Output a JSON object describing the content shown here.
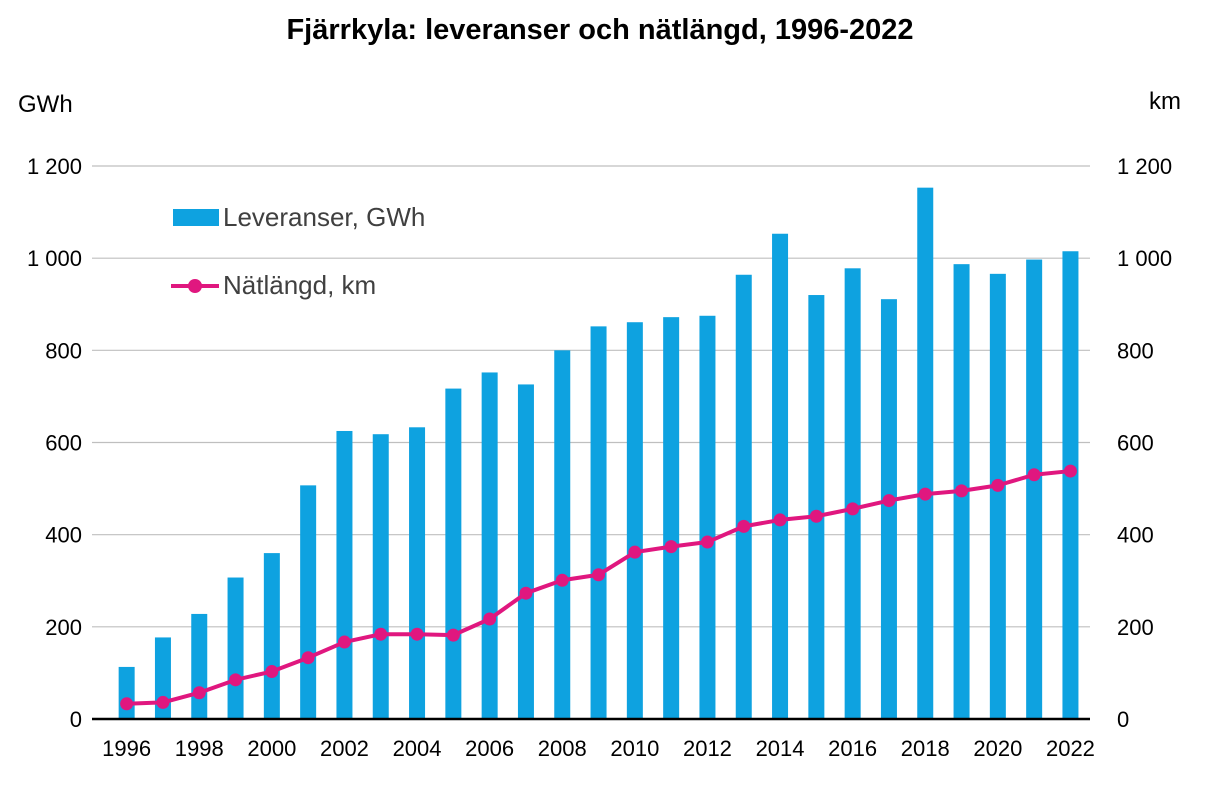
{
  "chart_data": {
    "type": "bar+line",
    "title": "Fjärrkyla: leveranser och nätlängd, 1996-2022",
    "y_left_unit": "GWh",
    "y_right_unit": "km",
    "ylim_left": [
      0,
      1200
    ],
    "ylim_right": [
      0,
      1200
    ],
    "y_ticks_left": [
      "0",
      "200",
      "400",
      "600",
      "800",
      "1 000",
      "1 200"
    ],
    "y_ticks_right": [
      "0",
      "200",
      "400",
      "600",
      "800",
      "1 000",
      "1 200"
    ],
    "y_tick_values": [
      0,
      200,
      400,
      600,
      800,
      1000,
      1200
    ],
    "x_tick_labels": [
      "1996",
      "1998",
      "2000",
      "2002",
      "2004",
      "2006",
      "2008",
      "2010",
      "2012",
      "2014",
      "2016",
      "2018",
      "2020",
      "2022"
    ],
    "years": [
      1996,
      1997,
      1998,
      1999,
      2000,
      2001,
      2002,
      2003,
      2004,
      2005,
      2006,
      2007,
      2008,
      2009,
      2010,
      2011,
      2012,
      2013,
      2014,
      2015,
      2016,
      2017,
      2018,
      2019,
      2020,
      2021,
      2022
    ],
    "grid": true,
    "legend_position": "top-left",
    "series": [
      {
        "name": "Leveranser, GWh",
        "type": "bar",
        "axis": "left",
        "color": "#0ea2e0",
        "values": [
          113,
          177,
          228,
          307,
          360,
          507,
          625,
          618,
          633,
          717,
          752,
          726,
          800,
          852,
          861,
          872,
          875,
          964,
          1053,
          920,
          978,
          911,
          1153,
          987,
          966,
          997,
          1015
        ]
      },
      {
        "name": "Nätlängd, km",
        "type": "line",
        "axis": "right",
        "color": "#e0177f",
        "values": [
          33,
          36,
          57,
          85,
          103,
          133,
          167,
          184,
          184,
          182,
          217,
          273,
          301,
          313,
          362,
          374,
          384,
          418,
          432,
          440,
          456,
          474,
          488,
          495,
          507,
          530,
          538
        ]
      }
    ]
  }
}
